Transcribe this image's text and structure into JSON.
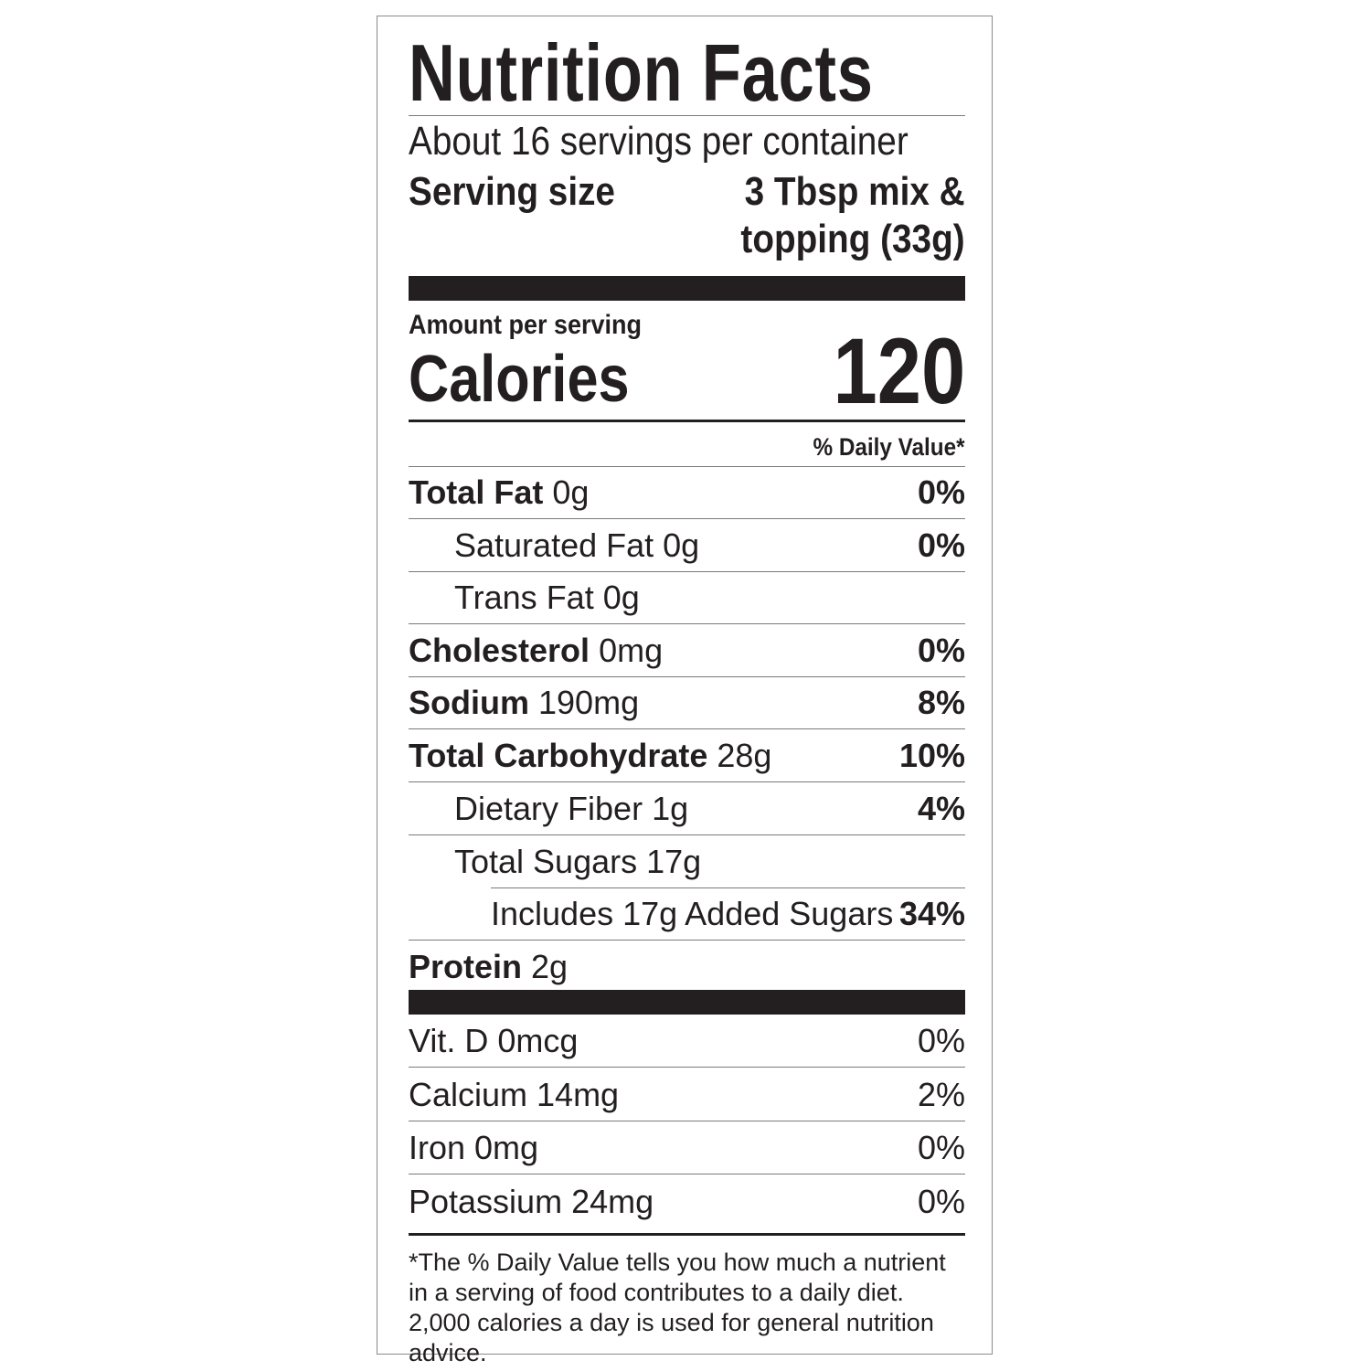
{
  "title": "Nutrition Facts",
  "servings_per_container": "About 16 servings per container",
  "serving_size": {
    "label": "Serving size",
    "value_line1": "3 Tbsp mix &",
    "value_line2": "topping (33g)"
  },
  "amount_per_serving": "Amount per serving",
  "calories": {
    "label": "Calories",
    "value": "120"
  },
  "daily_value_header": "% Daily Value*",
  "nutrients": [
    {
      "name": "Total Fat",
      "amount": "0g",
      "dv": "0%"
    },
    {
      "name": "Saturated Fat",
      "amount": "0g",
      "dv": "0%"
    },
    {
      "name": "Trans Fat",
      "amount": "0g",
      "dv": ""
    },
    {
      "name": "Cholesterol",
      "amount": "0mg",
      "dv": "0%"
    },
    {
      "name": "Sodium",
      "amount": "190mg",
      "dv": "8%"
    },
    {
      "name": "Total Carbohydrate",
      "amount": "28g",
      "dv": "10%"
    },
    {
      "name": "Dietary Fiber",
      "amount": "1g",
      "dv": "4%"
    },
    {
      "name": "Total Sugars",
      "amount": "17g",
      "dv": ""
    },
    {
      "name": "Includes 17g Added Sugars",
      "amount": "",
      "dv": "34%"
    },
    {
      "name": "Protein",
      "amount": "2g",
      "dv": ""
    }
  ],
  "vitamins": [
    {
      "text": "Vit. D 0mcg",
      "dv": "0%"
    },
    {
      "text": "Calcium 14mg",
      "dv": "2%"
    },
    {
      "text": "Iron 0mg",
      "dv": "0%"
    },
    {
      "text": "Potassium 24mg",
      "dv": "0%"
    }
  ],
  "footnote": "*The % Daily Value tells you how much a nutrient in a serving of food contributes to a daily diet. 2,000 calories a day is used for general nutrition advice."
}
